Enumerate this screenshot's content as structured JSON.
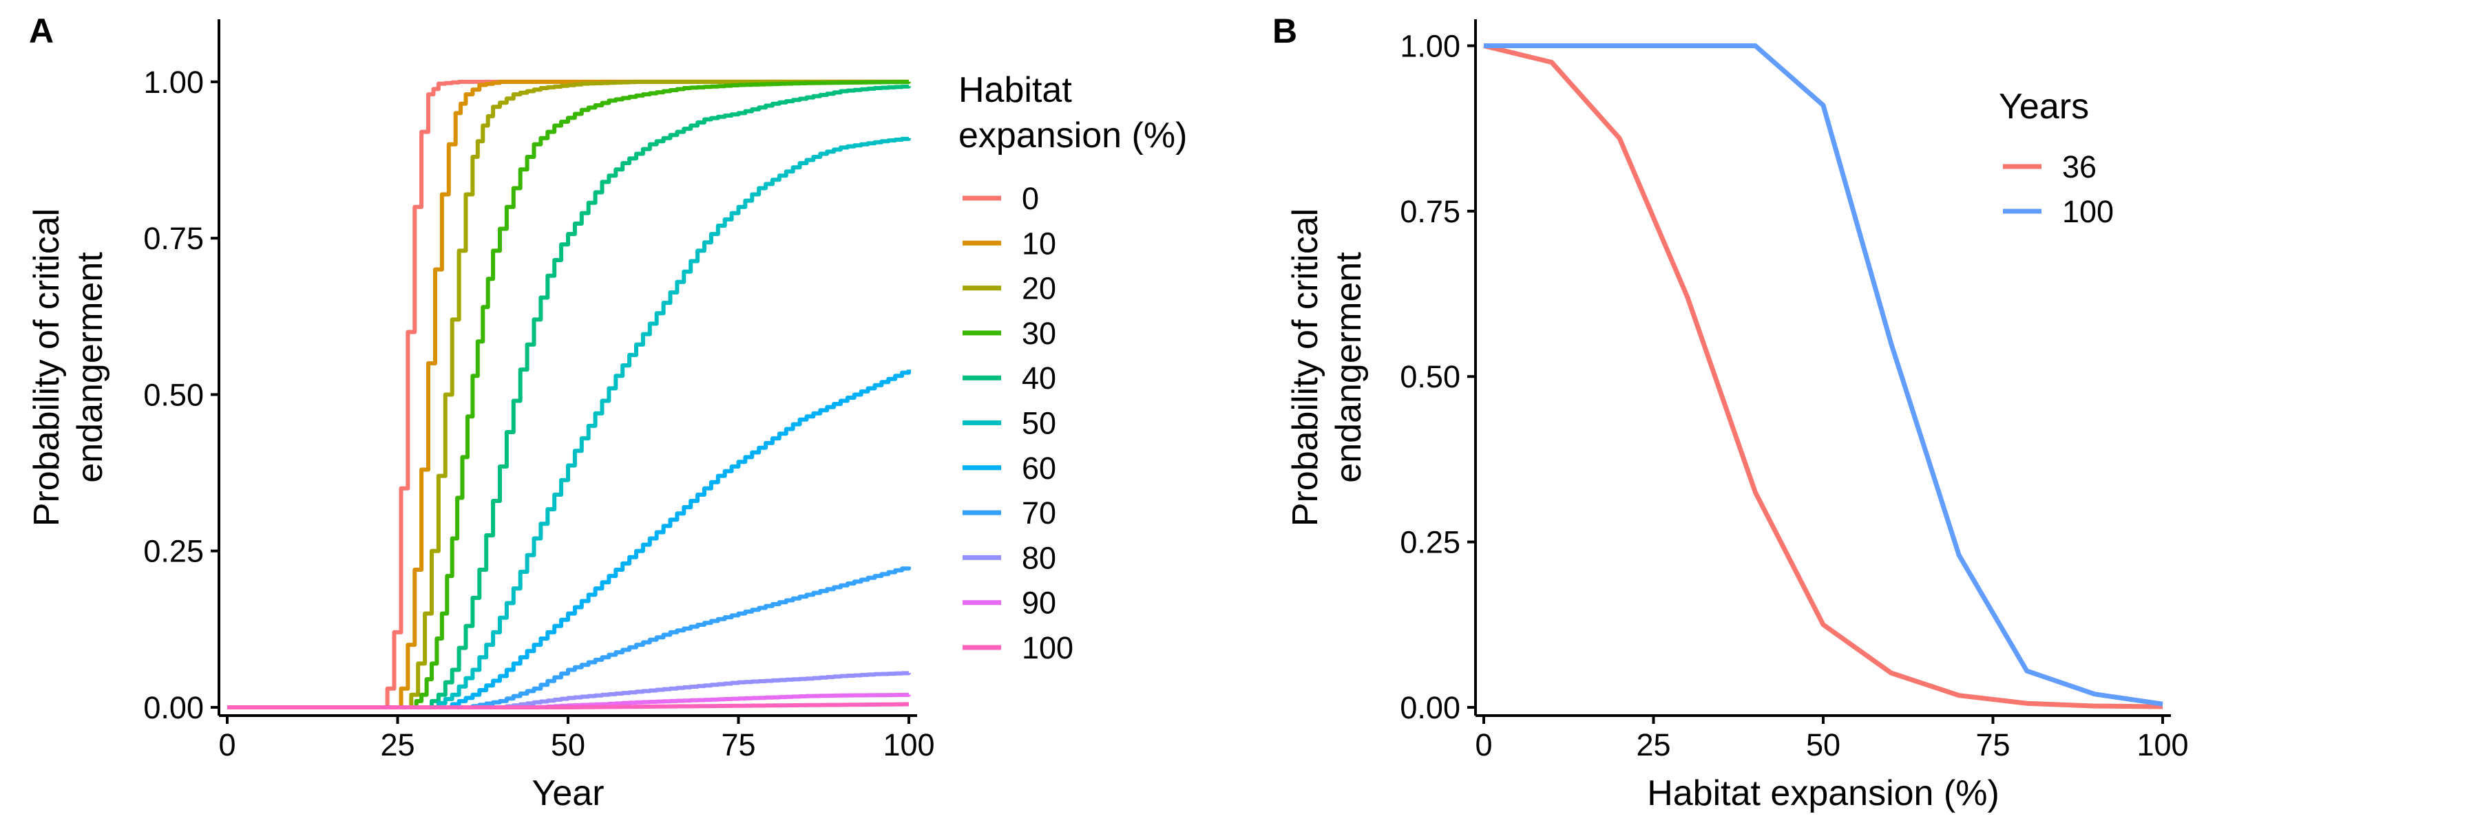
{
  "chart_data": [
    {
      "panel": "A",
      "type": "line",
      "step": true,
      "xlabel": "Year",
      "ylabel": [
        "Probability of critical",
        "endangerment"
      ],
      "xlim": [
        0,
        100
      ],
      "ylim": [
        0,
        1.1
      ],
      "xticks": [
        0,
        25,
        50,
        75,
        100
      ],
      "xtick_labels": [
        "0",
        "25",
        "50",
        "75",
        "100"
      ],
      "yticks": [
        0,
        0.25,
        0.5,
        0.75,
        1.0
      ],
      "ytick_labels": [
        "0.00",
        "0.25",
        "0.50",
        "0.75",
        "1.00"
      ],
      "grid": false,
      "legend": {
        "title": [
          "Habitat",
          "expansion (%)"
        ],
        "placement": "right"
      },
      "series": [
        {
          "name": "0",
          "color": "#F8766D",
          "points": [
            [
              0,
              0
            ],
            [
              22.5,
              0
            ],
            [
              23.5,
              0.03
            ],
            [
              24.5,
              0.12
            ],
            [
              25.5,
              0.35
            ],
            [
              26.5,
              0.6
            ],
            [
              27.5,
              0.8
            ],
            [
              28.5,
              0.92
            ],
            [
              29.5,
              0.98
            ],
            [
              31,
              0.997
            ],
            [
              34,
              1.0
            ],
            [
              100,
              1.0
            ]
          ]
        },
        {
          "name": "10",
          "color": "#D89000",
          "points": [
            [
              0,
              0
            ],
            [
              24.5,
              0
            ],
            [
              25.5,
              0.03
            ],
            [
              26.5,
              0.1
            ],
            [
              27.5,
              0.22
            ],
            [
              28.5,
              0.38
            ],
            [
              29.5,
              0.55
            ],
            [
              30.5,
              0.7
            ],
            [
              31.5,
              0.82
            ],
            [
              32.5,
              0.9
            ],
            [
              33.5,
              0.95
            ],
            [
              35,
              0.98
            ],
            [
              37,
              0.995
            ],
            [
              40,
              1.0
            ],
            [
              100,
              1.0
            ]
          ]
        },
        {
          "name": "20",
          "color": "#A3A500",
          "points": [
            [
              0,
              0
            ],
            [
              26,
              0
            ],
            [
              27,
              0.02
            ],
            [
              28,
              0.07
            ],
            [
              29,
              0.15
            ],
            [
              30,
              0.25
            ],
            [
              31,
              0.37
            ],
            [
              32,
              0.5
            ],
            [
              33,
              0.62
            ],
            [
              34,
              0.73
            ],
            [
              35,
              0.82
            ],
            [
              36,
              0.88
            ],
            [
              37.5,
              0.93
            ],
            [
              39,
              0.96
            ],
            [
              42,
              0.98
            ],
            [
              46,
              0.99
            ],
            [
              52,
              0.997
            ],
            [
              60,
              1.0
            ],
            [
              100,
              1.0
            ]
          ]
        },
        {
          "name": "30",
          "color": "#39B600",
          "points": [
            [
              0,
              0
            ],
            [
              27,
              0
            ],
            [
              28.5,
              0.02
            ],
            [
              30,
              0.07
            ],
            [
              31.5,
              0.15
            ],
            [
              33,
              0.27
            ],
            [
              34.5,
              0.4
            ],
            [
              36,
              0.53
            ],
            [
              37.5,
              0.64
            ],
            [
              39,
              0.73
            ],
            [
              41,
              0.8
            ],
            [
              43,
              0.86
            ],
            [
              45,
              0.9
            ],
            [
              48,
              0.93
            ],
            [
              52,
              0.955
            ],
            [
              56,
              0.97
            ],
            [
              61,
              0.98
            ],
            [
              67,
              0.99
            ],
            [
              75,
              0.995
            ],
            [
              85,
              0.998
            ],
            [
              100,
              1.0
            ]
          ]
        },
        {
          "name": "40",
          "color": "#00BF7D",
          "points": [
            [
              0,
              0
            ],
            [
              29,
              0
            ],
            [
              31,
              0.02
            ],
            [
              33,
              0.06
            ],
            [
              35,
              0.13
            ],
            [
              37,
              0.22
            ],
            [
              39,
              0.33
            ],
            [
              41,
              0.44
            ],
            [
              43,
              0.54
            ],
            [
              45,
              0.62
            ],
            [
              47,
              0.69
            ],
            [
              49,
              0.74
            ],
            [
              52,
              0.79
            ],
            [
              55,
              0.84
            ],
            [
              58,
              0.87
            ],
            [
              62,
              0.9
            ],
            [
              66,
              0.92
            ],
            [
              70,
              0.94
            ],
            [
              75,
              0.95
            ],
            [
              80,
              0.965
            ],
            [
              85,
              0.975
            ],
            [
              90,
              0.985
            ],
            [
              95,
              0.99
            ],
            [
              100,
              0.993
            ]
          ]
        },
        {
          "name": "50",
          "color": "#00BFC4",
          "points": [
            [
              0,
              0
            ],
            [
              30,
              0
            ],
            [
              33,
              0.02
            ],
            [
              36,
              0.06
            ],
            [
              39,
              0.12
            ],
            [
              42,
              0.19
            ],
            [
              45,
              0.27
            ],
            [
              48,
              0.34
            ],
            [
              51,
              0.41
            ],
            [
              54,
              0.47
            ],
            [
              57,
              0.53
            ],
            [
              60,
              0.58
            ],
            [
              63,
              0.63
            ],
            [
              66,
              0.68
            ],
            [
              69,
              0.73
            ],
            [
              72,
              0.77
            ],
            [
              75,
              0.8
            ],
            [
              78,
              0.83
            ],
            [
              81,
              0.85
            ],
            [
              84,
              0.87
            ],
            [
              87,
              0.885
            ],
            [
              90,
              0.895
            ],
            [
              93,
              0.9
            ],
            [
              96,
              0.905
            ],
            [
              100,
              0.91
            ]
          ]
        },
        {
          "name": "60",
          "color": "#00B0F6",
          "points": [
            [
              0,
              0
            ],
            [
              32,
              0
            ],
            [
              36,
              0.02
            ],
            [
              40,
              0.05
            ],
            [
              44,
              0.09
            ],
            [
              48,
              0.13
            ],
            [
              52,
              0.17
            ],
            [
              56,
              0.21
            ],
            [
              60,
              0.25
            ],
            [
              64,
              0.29
            ],
            [
              68,
              0.33
            ],
            [
              72,
              0.37
            ],
            [
              76,
              0.4
            ],
            [
              80,
              0.43
            ],
            [
              84,
              0.46
            ],
            [
              88,
              0.48
            ],
            [
              92,
              0.5
            ],
            [
              96,
              0.52
            ],
            [
              100,
              0.54
            ]
          ]
        },
        {
          "name": "70",
          "color": "#35A2FF",
          "points": [
            [
              0,
              0
            ],
            [
              35,
              0
            ],
            [
              40,
              0.01
            ],
            [
              45,
              0.03
            ],
            [
              50,
              0.06
            ],
            [
              55,
              0.08
            ],
            [
              60,
              0.1
            ],
            [
              65,
              0.12
            ],
            [
              70,
              0.135
            ],
            [
              75,
              0.15
            ],
            [
              80,
              0.165
            ],
            [
              85,
              0.18
            ],
            [
              90,
              0.195
            ],
            [
              95,
              0.21
            ],
            [
              100,
              0.225
            ]
          ]
        },
        {
          "name": "80",
          "color": "#9590FF",
          "points": [
            [
              0,
              0
            ],
            [
              40,
              0
            ],
            [
              45,
              0.008
            ],
            [
              50,
              0.015
            ],
            [
              55,
              0.02
            ],
            [
              60,
              0.025
            ],
            [
              65,
              0.03
            ],
            [
              70,
              0.035
            ],
            [
              75,
              0.04
            ],
            [
              80,
              0.043
            ],
            [
              85,
              0.046
            ],
            [
              90,
              0.05
            ],
            [
              95,
              0.053
            ],
            [
              100,
              0.055
            ]
          ]
        },
        {
          "name": "90",
          "color": "#E76BF3",
          "points": [
            [
              0,
              0
            ],
            [
              45,
              0
            ],
            [
              50,
              0.003
            ],
            [
              55,
              0.005
            ],
            [
              60,
              0.008
            ],
            [
              65,
              0.01
            ],
            [
              70,
              0.012
            ],
            [
              75,
              0.014
            ],
            [
              80,
              0.016
            ],
            [
              85,
              0.018
            ],
            [
              90,
              0.019
            ],
            [
              100,
              0.02
            ]
          ]
        },
        {
          "name": "100",
          "color": "#FF62BC",
          "points": [
            [
              0,
              0
            ],
            [
              50,
              0
            ],
            [
              60,
              0.001
            ],
            [
              70,
              0.002
            ],
            [
              80,
              0.003
            ],
            [
              90,
              0.004
            ],
            [
              100,
              0.005
            ]
          ]
        }
      ]
    },
    {
      "panel": "B",
      "type": "line",
      "step": false,
      "xlabel": "Habitat expansion (%)",
      "ylabel": [
        "Probability of critical",
        "endangerment"
      ],
      "xlim": [
        0,
        100
      ],
      "ylim": [
        0,
        1.0
      ],
      "xticks": [
        0,
        25,
        50,
        75,
        100
      ],
      "xtick_labels": [
        "0",
        "25",
        "50",
        "75",
        "100"
      ],
      "yticks": [
        0,
        0.25,
        0.5,
        0.75,
        1.0
      ],
      "ytick_labels": [
        "0.00",
        "0.25",
        "0.50",
        "0.75",
        "1.00"
      ],
      "grid": false,
      "legend": {
        "title": [
          "Years"
        ],
        "placement": "top-right"
      },
      "x": [
        0,
        10,
        20,
        30,
        40,
        50,
        60,
        70,
        80,
        90,
        100
      ],
      "series": [
        {
          "name": "36",
          "color": "#F8766D",
          "values": [
            1.0,
            0.975,
            0.86,
            0.62,
            0.325,
            0.125,
            0.052,
            0.018,
            0.006,
            0.002,
            0.001
          ]
        },
        {
          "name": "100",
          "color": "#619CFF",
          "values": [
            1.0,
            1.0,
            1.0,
            1.0,
            1.0,
            0.91,
            0.55,
            0.23,
            0.055,
            0.02,
            0.005
          ]
        }
      ]
    }
  ]
}
